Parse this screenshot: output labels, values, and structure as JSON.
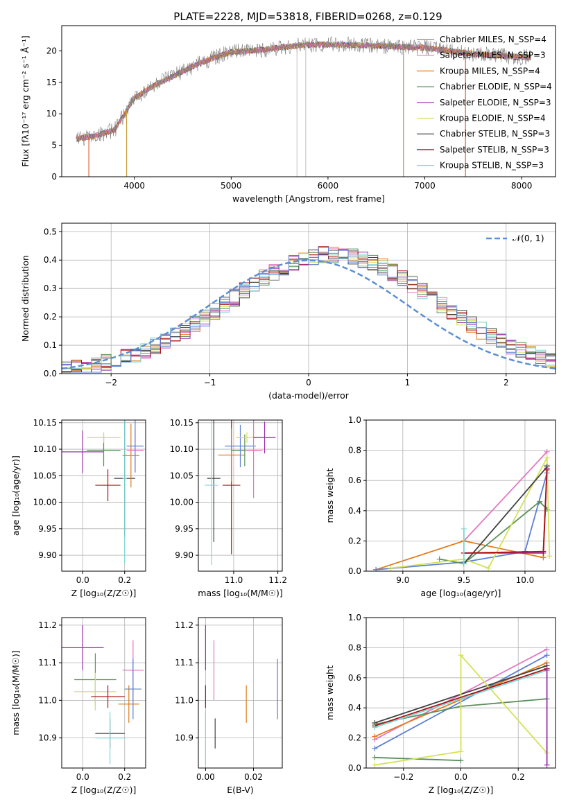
{
  "figure": {
    "title": "PLATE=2228, MJD=53818, FIBERID=0268, z=0.129"
  },
  "chart_data": [
    {
      "id": "spectrum",
      "type": "line",
      "title": "PLATE=2228, MJD=53818, FIBERID=0268, z=0.129",
      "xlabel": "wavelength [Angstrom, rest frame]",
      "ylabel": "Flux [fλ10⁻¹⁷ erg cm⁻² s⁻¹ Å⁻¹]",
      "xlim": [
        3250,
        8350
      ],
      "ylim": [
        0,
        24
      ],
      "xticks": [
        4000,
        5000,
        6000,
        7000,
        8000
      ],
      "yticks": [
        0,
        5,
        10,
        15,
        20
      ],
      "grid": false,
      "legend_position": "right",
      "legend": [
        {
          "label": "Chabrier MILES, N_SSP=4",
          "color": "#808080"
        },
        {
          "label": "Salpeter MILES, N_SSP=3",
          "color": "#e377c2"
        },
        {
          "label": "Kroupa MILES, N_SSP=4",
          "color": "#e07b1a"
        },
        {
          "label": "Chabrier ELODIE, N_SSP=4",
          "color": "#5a8f5a"
        },
        {
          "label": "Salpeter ELODIE, N_SSP=3",
          "color": "#9b30b0"
        },
        {
          "label": "Kroupa ELODIE, N_SSP=4",
          "color": "#d4e157"
        },
        {
          "label": "Chabrier STELIB, N_SSP=3",
          "color": "#404040"
        },
        {
          "label": "Salpeter STELIB, N_SSP=3",
          "color": "#b01010"
        },
        {
          "label": "Kroupa STELIB, N_SSP=3",
          "color": "#7fd6d6"
        }
      ],
      "continuum": [
        [
          3400,
          6.0
        ],
        [
          3600,
          6.5
        ],
        [
          3800,
          7.5
        ],
        [
          4000,
          12.5
        ],
        [
          4200,
          14.5
        ],
        [
          4400,
          16.0
        ],
        [
          4600,
          17.5
        ],
        [
          4800,
          18.8
        ],
        [
          5000,
          19.8
        ],
        [
          5200,
          20.0
        ],
        [
          5500,
          20.5
        ],
        [
          5800,
          21.0
        ],
        [
          6000,
          21.0
        ],
        [
          6500,
          20.8
        ],
        [
          7000,
          20.5
        ],
        [
          7500,
          19.5
        ],
        [
          8000,
          19.0
        ],
        [
          8100,
          19.0
        ]
      ],
      "spikes": [
        {
          "x": 3530,
          "color": "#e06030"
        },
        {
          "x": 3920,
          "color": "#c8a040"
        },
        {
          "x": 5680,
          "color": "#cccccc"
        },
        {
          "x": 5770,
          "color": "#cccccc"
        },
        {
          "x": 6780,
          "color": "#b09060"
        },
        {
          "x": 7420,
          "color": "#e06030"
        }
      ]
    },
    {
      "id": "residuals",
      "type": "line",
      "xlabel": "(data-model)/error",
      "ylabel": "Normed distribution",
      "xlim": [
        -2.5,
        2.5
      ],
      "ylim": [
        0,
        0.53
      ],
      "xticks": [
        -2,
        -1,
        0,
        1,
        2
      ],
      "yticks": [
        0.0,
        0.1,
        0.2,
        0.3,
        0.4,
        0.5
      ],
      "grid": true,
      "legend_position": "top-right",
      "legend": [
        {
          "label": "𝒩(0, 1)",
          "color": "#5b8ed6",
          "style": "dashed"
        }
      ],
      "hist_colors": [
        "#808080",
        "#e377c2",
        "#e07b1a",
        "#5a8f5a",
        "#9b30b0",
        "#d4e157",
        "#404040",
        "#b01010",
        "#7fd6d6",
        "#5b7fd6"
      ],
      "hist_shape": {
        "center": 0.25,
        "sigma": 1.05,
        "peak": 0.42
      },
      "bin_width": 0.1
    },
    {
      "id": "age-vs-Z",
      "type": "scatter",
      "xlabel": "Z [log₁₀(Z/Z☉)]",
      "ylabel": "age  [log₁₀(age/yr)]",
      "xlim": [
        -0.1,
        0.3
      ],
      "ylim": [
        9.87,
        10.155
      ],
      "xticks": [
        0.0,
        0.2
      ],
      "yticks": [
        9.9,
        9.95,
        10.0,
        10.05,
        10.1,
        10.15
      ],
      "grid": true,
      "points": [
        {
          "x": 0.0,
          "y": 10.095,
          "xerr": 0.1,
          "yerr": 0.04,
          "color": "#9b30b0"
        },
        {
          "x": 0.1,
          "y": 10.098,
          "xerr": 0.08,
          "yerr": 0.03,
          "color": "#5a8f5a"
        },
        {
          "x": 0.1,
          "y": 10.122,
          "xerr": 0.08,
          "yerr": 0.01,
          "color": "#d4e157"
        },
        {
          "x": 0.12,
          "y": 10.032,
          "xerr": 0.06,
          "yerr": 0.03,
          "color": "#b01010"
        },
        {
          "x": 0.2,
          "y": 10.045,
          "xerr": 0.05,
          "yerr": 0.11,
          "color": "#404040"
        },
        {
          "x": 0.2,
          "y": 10.045,
          "xerr": 0.01,
          "yerr": 0.16,
          "color": "#7fd6d6"
        },
        {
          "x": 0.23,
          "y": 10.088,
          "xerr": 0.04,
          "yerr": 0.06,
          "color": "#e07b1a"
        },
        {
          "x": 0.25,
          "y": 10.098,
          "xerr": 0.04,
          "yerr": 0.04,
          "color": "#e377c2"
        },
        {
          "x": 0.25,
          "y": 10.106,
          "xerr": 0.04,
          "yerr": 0.05,
          "color": "#5b7fd6"
        }
      ]
    },
    {
      "id": "age-vs-mass",
      "type": "scatter",
      "xlabel": "mass [log₁₀(M/M☉)]",
      "ylabel": "",
      "xlim": [
        10.84,
        11.22
      ],
      "ylim": [
        9.87,
        10.155
      ],
      "xticks": [
        11.0,
        11.2
      ],
      "yticks": [
        9.9,
        9.95,
        10.0,
        10.05,
        10.1,
        10.15
      ],
      "grid": true,
      "points": [
        {
          "x": 10.91,
          "y": 10.045,
          "xerr": 0.03,
          "yerr": 0.12,
          "color": "#404040"
        },
        {
          "x": 10.9,
          "y": 10.032,
          "xerr": 0.03,
          "yerr": 0.15,
          "color": "#7fd6d6"
        },
        {
          "x": 10.99,
          "y": 10.032,
          "xerr": 0.04,
          "yerr": 0.13,
          "color": "#b01010"
        },
        {
          "x": 10.99,
          "y": 10.089,
          "xerr": 0.06,
          "yerr": 0.05,
          "color": "#e07b1a"
        },
        {
          "x": 11.05,
          "y": 10.098,
          "xerr": 0.06,
          "yerr": 0.03,
          "color": "#5a8f5a"
        },
        {
          "x": 11.03,
          "y": 10.106,
          "xerr": 0.07,
          "yerr": 0.04,
          "color": "#5b7fd6"
        },
        {
          "x": 11.06,
          "y": 10.122,
          "xerr": 0.05,
          "yerr": 0.01,
          "color": "#d4e157"
        },
        {
          "x": 11.09,
          "y": 10.098,
          "xerr": 0.04,
          "yerr": 0.09,
          "color": "#e377c2"
        },
        {
          "x": 11.14,
          "y": 10.122,
          "xerr": 0.05,
          "yerr": 0.03,
          "color": "#9b30b0"
        }
      ]
    },
    {
      "id": "massweight-vs-age",
      "type": "line",
      "xlabel": "age  [log₁₀(age/yr)]",
      "ylabel": "mass weight",
      "xlim": [
        8.7,
        10.25
      ],
      "ylim": [
        0,
        1.0
      ],
      "xticks": [
        9.0,
        9.5,
        10.0
      ],
      "yticks": [
        0.0,
        0.2,
        0.4,
        0.6,
        0.8,
        1.0
      ],
      "grid": true,
      "series": [
        {
          "color": "#e377c2",
          "x": [
            9.5,
            10.18
          ],
          "y": [
            0.2,
            0.79
          ]
        },
        {
          "color": "#e07b1a",
          "x": [
            8.78,
            9.5,
            10.15,
            10.18
          ],
          "y": [
            0.01,
            0.2,
            0.09,
            0.7
          ]
        },
        {
          "color": "#5b7fd6",
          "x": [
            8.78,
            9.5,
            10.0,
            10.18
          ],
          "y": [
            0.01,
            0.06,
            0.13,
            0.65
          ]
        },
        {
          "color": "#5a8f5a",
          "x": [
            9.3,
            9.5,
            10.12,
            10.18
          ],
          "y": [
            0.08,
            0.05,
            0.46,
            0.41
          ]
        },
        {
          "color": "#9b30b0",
          "x": [
            9.5,
            10.15,
            10.18
          ],
          "y": [
            0.12,
            0.12,
            0.68
          ]
        },
        {
          "color": "#d4e157",
          "x": [
            8.9,
            9.5,
            9.7,
            10.18,
            10.2
          ],
          "y": [
            0.02,
            0.08,
            0.02,
            0.75,
            0.1
          ]
        },
        {
          "color": "#404040",
          "x": [
            9.5,
            10.18
          ],
          "y": [
            0.05,
            0.69
          ]
        },
        {
          "color": "#b01010",
          "x": [
            9.5,
            10.15,
            10.18
          ],
          "y": [
            0.12,
            0.13,
            0.67
          ]
        },
        {
          "color": "#7fd6d6",
          "x": [
            9.5,
            9.5
          ],
          "y": [
            0.05,
            0.28
          ]
        }
      ]
    },
    {
      "id": "mass-vs-Z",
      "type": "scatter",
      "xlabel": "Z [log₁₀(Z/Z☉)]",
      "ylabel": "mass [log₁₀(M/M☉)]",
      "xlim": [
        -0.1,
        0.3
      ],
      "ylim": [
        10.82,
        11.22
      ],
      "xticks": [
        0.0,
        0.2
      ],
      "yticks": [
        10.9,
        11.0,
        11.1,
        11.2
      ],
      "grid": true,
      "points": [
        {
          "x": 0.0,
          "y": 11.14,
          "xerr": 0.1,
          "yerr": 0.06,
          "color": "#9b30b0"
        },
        {
          "x": 0.06,
          "y": 11.055,
          "xerr": 0.1,
          "yerr": 0.07,
          "color": "#5a8f5a"
        },
        {
          "x": 0.06,
          "y": 11.023,
          "xerr": 0.1,
          "yerr": 0.05,
          "color": "#d4e157"
        },
        {
          "x": 0.12,
          "y": 11.01,
          "xerr": 0.08,
          "yerr": 0.03,
          "color": "#b01010"
        },
        {
          "x": 0.13,
          "y": 10.912,
          "xerr": 0.07,
          "yerr": 0.04,
          "color": "#404040"
        },
        {
          "x": 0.13,
          "y": 10.9,
          "xerr": 0.07,
          "yerr": 0.07,
          "color": "#7fd6d6"
        },
        {
          "x": 0.22,
          "y": 10.99,
          "xerr": 0.05,
          "yerr": 0.05,
          "color": "#e07b1a"
        },
        {
          "x": 0.24,
          "y": 11.08,
          "xerr": 0.05,
          "yerr": 0.08,
          "color": "#e377c2"
        },
        {
          "x": 0.24,
          "y": 11.03,
          "xerr": 0.04,
          "yerr": 0.08,
          "color": "#5b7fd6"
        }
      ]
    },
    {
      "id": "mass-vs-ebv",
      "type": "scatter",
      "xlabel": "E(B-V)",
      "ylabel": "",
      "xlim": [
        -0.003,
        0.032
      ],
      "ylim": [
        10.82,
        11.22
      ],
      "xticks": [
        0.0,
        0.02
      ],
      "yticks": [
        10.9,
        11.0,
        11.1,
        11.2
      ],
      "grid": true,
      "points": [
        {
          "x": 0.0,
          "y": 11.14,
          "xerr": 0,
          "yerr": 0.06,
          "color": "#9b30b0"
        },
        {
          "x": 0.0,
          "y": 11.01,
          "xerr": 0,
          "yerr": 0.03,
          "color": "#b01010"
        },
        {
          "x": 0.0,
          "y": 10.9,
          "xerr": 0,
          "yerr": 0.07,
          "color": "#7fd6d6"
        },
        {
          "x": 0.004,
          "y": 10.912,
          "xerr": 0,
          "yerr": 0.04,
          "color": "#404040"
        },
        {
          "x": 0.0035,
          "y": 11.08,
          "xerr": 0,
          "yerr": 0.08,
          "color": "#e377c2"
        },
        {
          "x": 0.017,
          "y": 10.99,
          "xerr": 0,
          "yerr": 0.05,
          "color": "#e07b1a"
        },
        {
          "x": 0.03,
          "y": 11.03,
          "xerr": 0,
          "yerr": 0.08,
          "color": "#5b7fd6"
        }
      ]
    },
    {
      "id": "massweight-vs-Z",
      "type": "line",
      "xlabel": "Z [log₁₀(Z/Z☉)]",
      "ylabel": "mass weight",
      "xlim": [
        -0.33,
        0.33
      ],
      "ylim": [
        0,
        1.0
      ],
      "xticks": [
        -0.2,
        0.0,
        0.2
      ],
      "yticks": [
        0.0,
        0.2,
        0.4,
        0.6,
        0.8,
        1.0
      ],
      "grid": true,
      "series": [
        {
          "color": "#e377c2",
          "x": [
            -0.3,
            0.3
          ],
          "y": [
            0.19,
            0.79
          ]
        },
        {
          "color": "#e07b1a",
          "x": [
            -0.3,
            0.3
          ],
          "y": [
            0.21,
            0.7
          ]
        },
        {
          "color": "#5b7fd6",
          "x": [
            -0.3,
            0.3
          ],
          "y": [
            0.13,
            0.75
          ]
        },
        {
          "color": "#404040",
          "x": [
            -0.3,
            0.3
          ],
          "y": [
            0.3,
            0.68
          ]
        },
        {
          "color": "#5a8f5a",
          "x": [
            -0.3,
            0.0,
            0.3
          ],
          "y": [
            0.29,
            0.41,
            0.46
          ]
        },
        {
          "color": "#5a8f5a",
          "x": [
            -0.3,
            0.0
          ],
          "y": [
            0.07,
            0.05
          ]
        },
        {
          "color": "#d4e157",
          "x": [
            -0.3,
            0.0,
            0.0,
            0.3
          ],
          "y": [
            0.02,
            0.11,
            0.75,
            0.1
          ]
        },
        {
          "color": "#b01010",
          "x": [
            -0.3,
            0.3
          ],
          "y": [
            0.28,
            0.66
          ]
        },
        {
          "color": "#7fd6d6",
          "x": [
            -0.3,
            0.3
          ],
          "y": [
            0.27,
            0.65
          ]
        },
        {
          "color": "#9b30b0",
          "x": [
            0.3,
            0.3
          ],
          "y": [
            0.02,
            0.65
          ]
        }
      ]
    }
  ]
}
